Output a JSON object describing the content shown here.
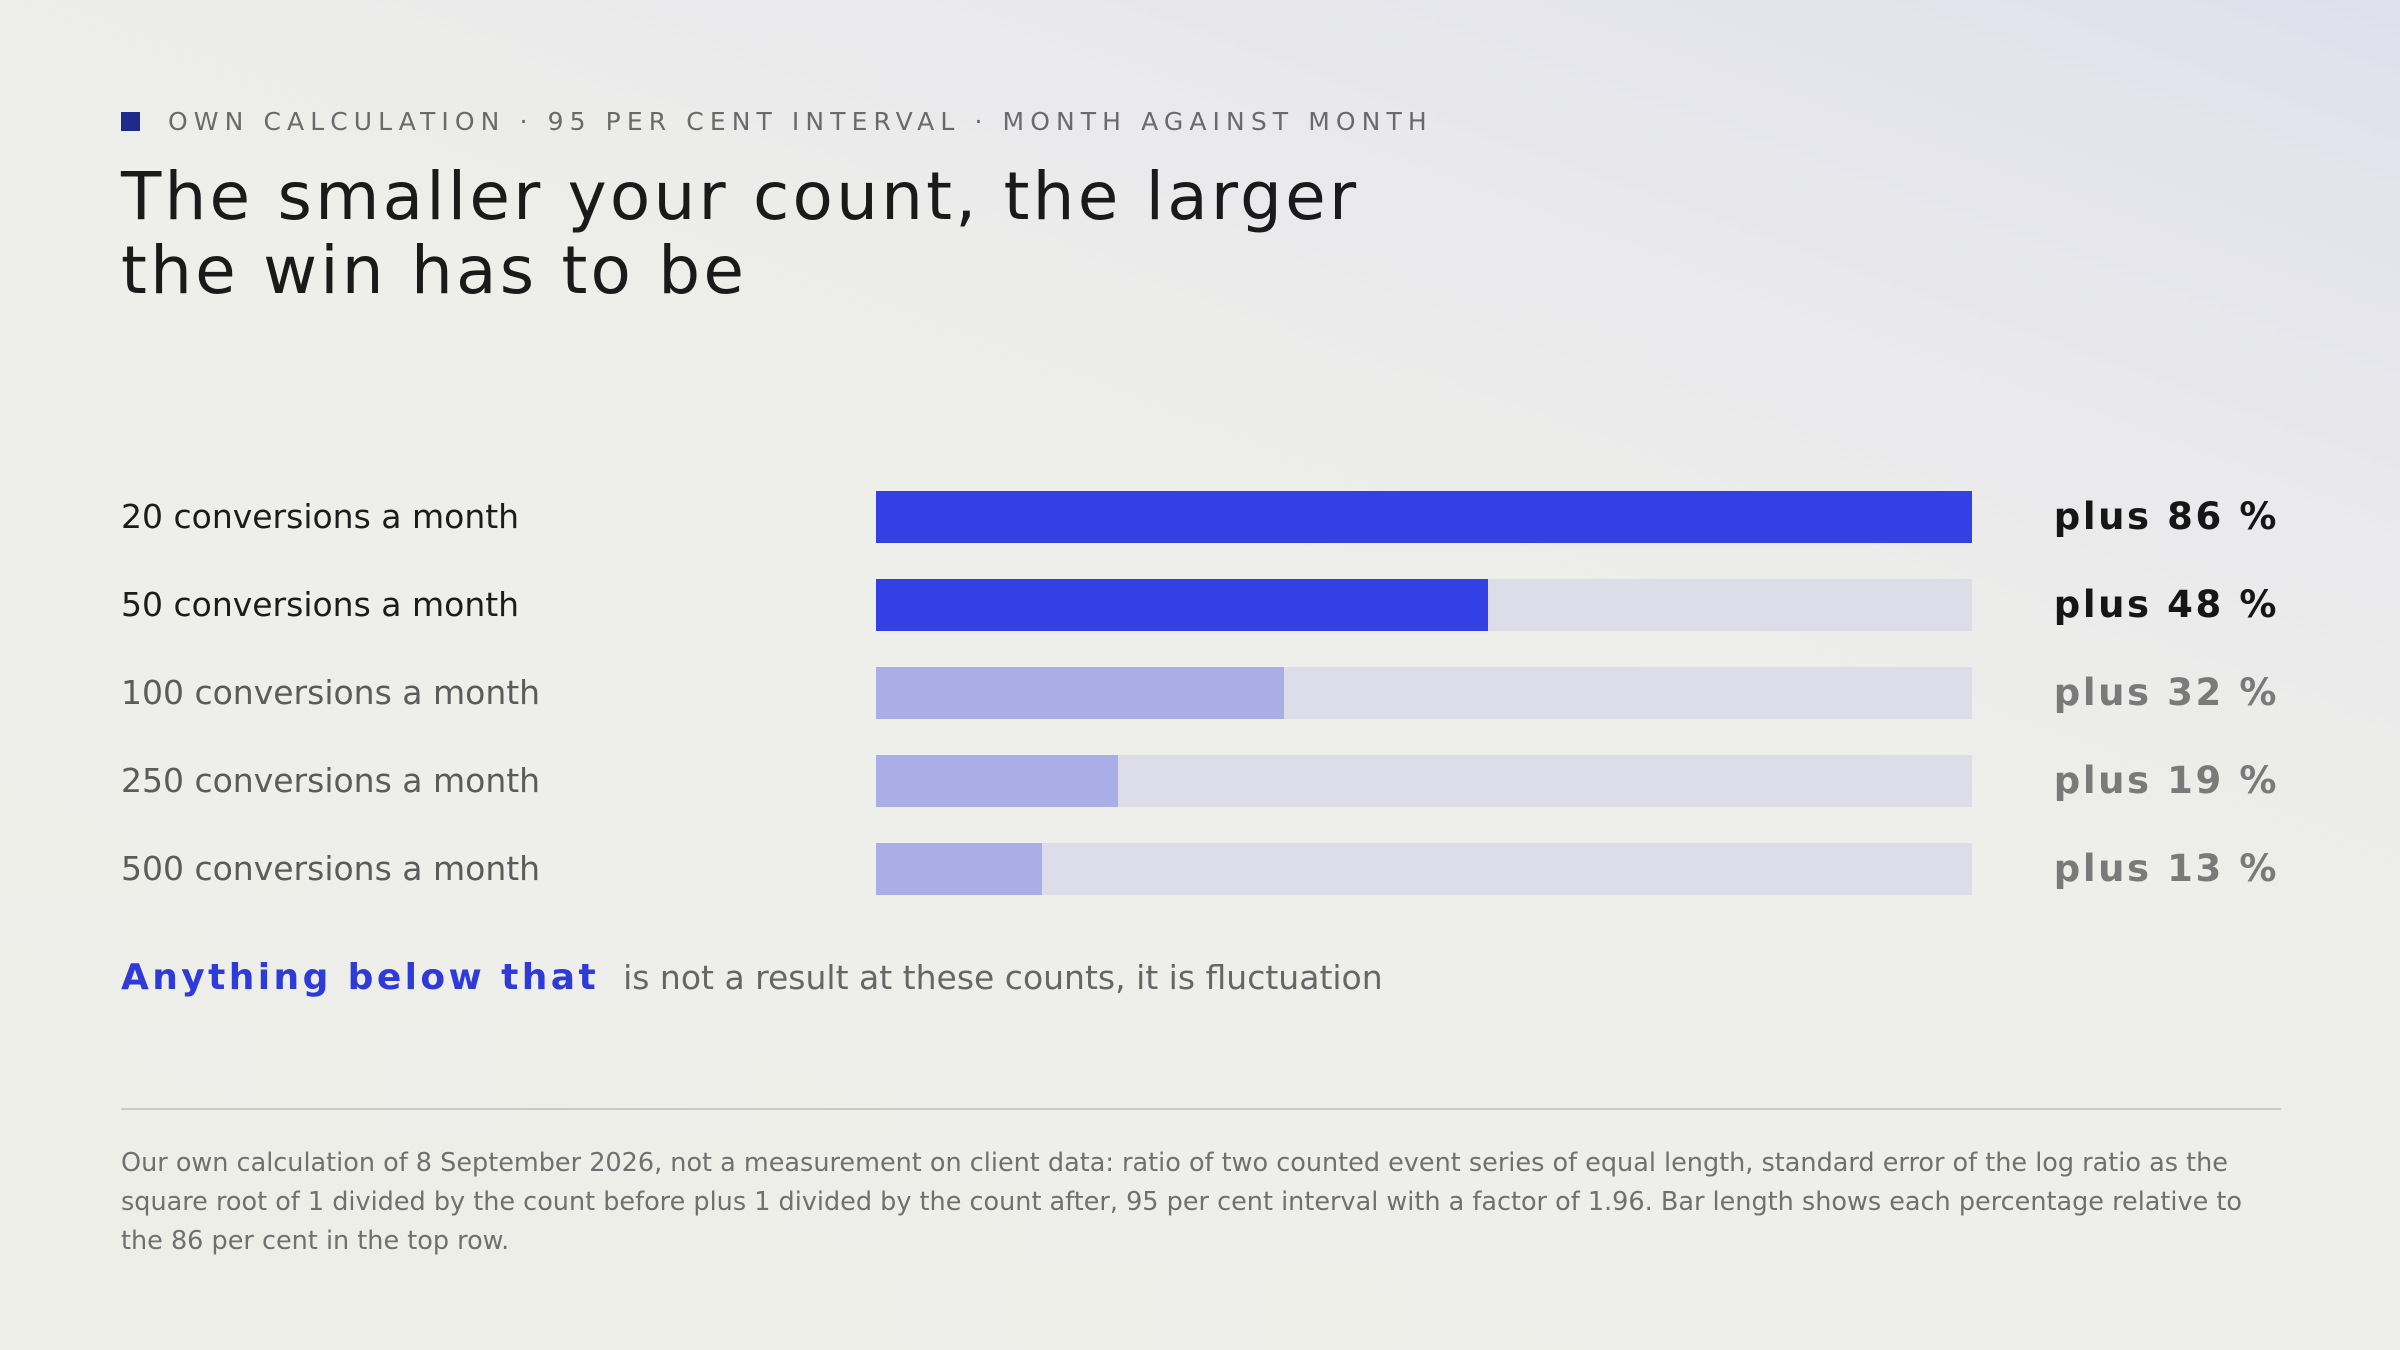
{
  "header": {
    "kicker": "OWN CALCULATION · 95 PER CENT INTERVAL · MONTH AGAINST MONTH",
    "title": "The smaller your count, the larger the win has to be"
  },
  "chart_data": {
    "type": "bar",
    "orientation": "horizontal",
    "categories": [
      "20 conversions a month",
      "50 conversions a month",
      "100 conversions a month",
      "250 conversions a month",
      "500 conversions a month"
    ],
    "values": [
      86,
      48,
      32,
      19,
      13
    ],
    "value_labels": [
      "plus 86 %",
      "plus 48 %",
      "plus 32 %",
      "plus 19 %",
      "plus 13 %"
    ],
    "emphasis": [
      true,
      true,
      false,
      false,
      false
    ],
    "scale_max": 86,
    "colors": {
      "emphasis": "#3340e6",
      "muted": "#aaaee6",
      "track": "#dcdde8"
    }
  },
  "note": {
    "highlight": "Anything below that",
    "rest": "is not a result at these counts, it is fluctuation"
  },
  "footnote": "Our own calculation of 8 September 2026, not a measurement on client data: ratio of two counted event series of equal length, standard error of the log ratio as the square root of 1 divided by the count before plus 1 divided by the count after, 95 per cent interval with a factor of 1.96. Bar length shows each percentage relative to the 86 per cent in the top row."
}
